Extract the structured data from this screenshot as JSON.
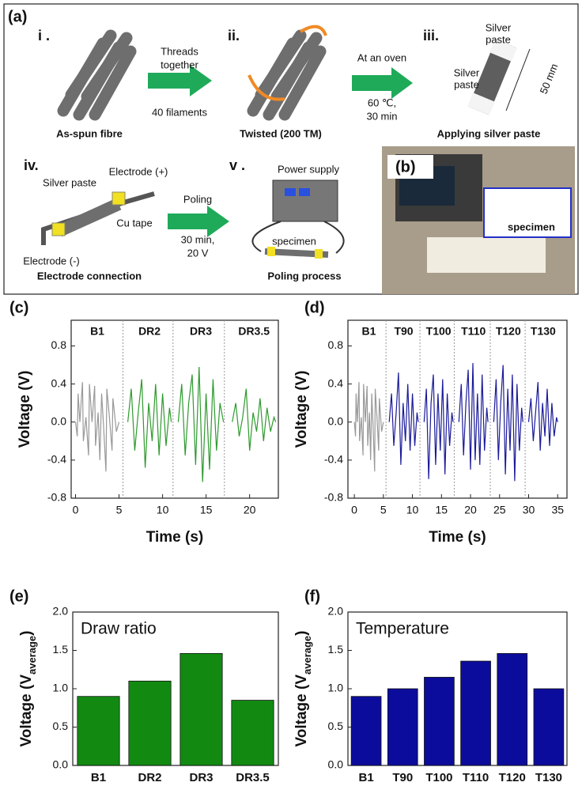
{
  "diagram": {
    "panel_label": "(a)",
    "step_i": "i .",
    "step_ii": "ii.",
    "step_iii": "iii.",
    "step_iv": "iv.",
    "step_v": "v .",
    "photo_label": "(b)",
    "arrow1_top": [
      "Threads",
      "together"
    ],
    "arrow1_bottom": "40 filaments",
    "caption_i": "As-spun fibre",
    "caption_ii": "Twisted (200 TM)",
    "arrow2_top": "At an oven",
    "arrow2_bottom": [
      "60 ℃,",
      "30 min"
    ],
    "paste_top": [
      "Silver",
      "paste"
    ],
    "paste_left": [
      "Silver",
      "paste"
    ],
    "length": "50 mm",
    "caption_iii": "Applying silver paste",
    "iv_paste": "Silver paste",
    "iv_plus": "Electrode (+)",
    "iv_tape": "Cu tape",
    "iv_minus": "Electrode (-)",
    "caption_iv": "Electrode connection",
    "arrow3_top": "Poling",
    "arrow3_bottom": [
      "30 min,",
      "20 V"
    ],
    "v_power": "Power supply",
    "v_specimen": "specimen",
    "caption_v": "Poling process",
    "photo_specimen": "specimen"
  },
  "chart_data": [
    {
      "label": "(c)",
      "type": "line",
      "ylabel": "Voltage (V)",
      "xlabel": "Time (s)",
      "xlim": [
        -0.5,
        23.3
      ],
      "xticks": [
        0,
        5,
        10,
        15,
        20
      ],
      "ylim": [
        -0.8,
        1.07
      ],
      "yticks": [
        -0.8,
        -0.4,
        {
          "value": 0,
          "label": "0.0"
        },
        0.4,
        0.8
      ],
      "dividers": [
        5.45,
        11.2,
        17.1
      ],
      "series": [
        {
          "name": "B1",
          "color": "#999999",
          "x": [
            0,
            0.2,
            0.3,
            0.5,
            0.8,
            0.9,
            1.2,
            1.5,
            1.6,
            1.9,
            2.2,
            2.3,
            2.6,
            2.8,
            3.0,
            3.2,
            3.5,
            3.6,
            3.9,
            4.2,
            4.3,
            4.7,
            5.0
          ],
          "values": [
            0,
            -0.15,
            0.3,
            0,
            0.42,
            -0.2,
            0.05,
            -0.35,
            0.4,
            0,
            0.38,
            -0.25,
            0.1,
            -0.4,
            0.3,
            0,
            -0.52,
            0.35,
            0.05,
            -0.3,
            0.25,
            -0.1,
            0
          ]
        },
        {
          "name": "DR2",
          "color": "#2e9a2e",
          "x": [
            6,
            6.4,
            6.8,
            7.2,
            7.6,
            8,
            8.4,
            8.8,
            9.2,
            9.6,
            10,
            10.4,
            10.8,
            11
          ],
          "values": [
            0,
            0.35,
            -0.3,
            0.1,
            0.45,
            -0.48,
            0.2,
            -0.2,
            0.4,
            -0.35,
            0.3,
            -0.25,
            0.15,
            0
          ]
        },
        {
          "name": "DR3",
          "color": "#2e9a2e",
          "x": [
            11.8,
            12.2,
            12.6,
            13,
            13.4,
            13.8,
            14.2,
            14.6,
            15,
            15.4,
            15.8,
            16.2,
            16.6,
            17
          ],
          "values": [
            0,
            0.4,
            -0.35,
            0.2,
            0.5,
            -0.45,
            0.58,
            -0.63,
            0.3,
            -0.5,
            0.45,
            -0.3,
            0.2,
            0
          ]
        },
        {
          "name": "DR3.5",
          "color": "#2e9a2e",
          "x": [
            18,
            18.4,
            18.8,
            19.2,
            19.6,
            20,
            20.4,
            20.8,
            21.2,
            21.6,
            22,
            22.4,
            22.8,
            23
          ],
          "values": [
            0,
            0.2,
            -0.15,
            0.05,
            0.35,
            -0.3,
            0.1,
            -0.1,
            0.25,
            -0.2,
            0.15,
            -0.1,
            0.05,
            0
          ]
        }
      ]
    },
    {
      "label": "(d)",
      "type": "line",
      "ylabel": "Voltage (V)",
      "xlabel": "Time (s)",
      "xlim": [
        -1.1,
        36.6
      ],
      "xticks": [
        0,
        5,
        10,
        15,
        20,
        25,
        30,
        35
      ],
      "ylim": [
        -0.8,
        1.07
      ],
      "yticks": [
        -0.8,
        -0.4,
        {
          "value": 0,
          "label": "0.0"
        },
        0.4,
        0.8
      ],
      "dividers": [
        5.45,
        11.3,
        17.2,
        23.4,
        29.4
      ],
      "series": [
        {
          "name": "B1",
          "color": "#999999",
          "x": [
            0,
            0.2,
            0.3,
            0.5,
            0.8,
            0.9,
            1.2,
            1.5,
            1.6,
            1.9,
            2.2,
            2.3,
            2.6,
            2.8,
            3.0,
            3.2,
            3.5,
            3.6,
            3.9,
            4.2,
            4.3,
            4.7,
            5.0
          ],
          "values": [
            0,
            -0.15,
            0.3,
            0,
            0.42,
            -0.2,
            0.05,
            -0.35,
            0.4,
            0,
            0.38,
            -0.25,
            0.1,
            -0.4,
            0.3,
            0,
            -0.52,
            0.35,
            0.05,
            -0.3,
            0.25,
            -0.1,
            0
          ]
        },
        {
          "name": "T90",
          "color": "#1a1a99",
          "x": [
            6,
            6.4,
            6.8,
            7.2,
            7.6,
            8,
            8.4,
            8.8,
            9.2,
            9.6,
            10,
            10.4,
            10.8,
            11
          ],
          "values": [
            0,
            0.3,
            -0.25,
            0.1,
            0.52,
            -0.45,
            0.2,
            -0.2,
            0.4,
            -0.3,
            0.3,
            -0.25,
            0.1,
            0
          ]
        },
        {
          "name": "T100",
          "color": "#1a1a99",
          "x": [
            12,
            12.4,
            12.8,
            13.2,
            13.6,
            14,
            14.4,
            14.8,
            15.2,
            15.6,
            16,
            16.4,
            16.8,
            17
          ],
          "values": [
            0,
            0.35,
            -0.6,
            0.2,
            0.5,
            -0.45,
            0.3,
            -0.3,
            0.45,
            -0.55,
            0.3,
            -0.25,
            0.1,
            0
          ]
        },
        {
          "name": "T110",
          "color": "#1a1a99",
          "x": [
            18,
            18.4,
            18.8,
            19.2,
            19.6,
            20,
            20.4,
            20.8,
            21.2,
            21.6,
            22,
            22.4,
            22.8,
            23
          ],
          "values": [
            0,
            0.4,
            -0.35,
            0.2,
            0.55,
            -0.5,
            0.62,
            -0.4,
            0.3,
            -0.45,
            0.5,
            -0.3,
            0.15,
            0
          ]
        },
        {
          "name": "T120",
          "color": "#1a1a99",
          "x": [
            24,
            24.4,
            24.8,
            25.2,
            25.6,
            26,
            26.4,
            26.8,
            27.2,
            27.6,
            28,
            28.4,
            28.8,
            29
          ],
          "values": [
            0,
            0.45,
            -0.4,
            0.2,
            0.6,
            -0.55,
            0.35,
            -0.3,
            0.5,
            -0.62,
            0.4,
            -0.3,
            0.15,
            0
          ]
        },
        {
          "name": "T130",
          "color": "#1a1a99",
          "x": [
            30,
            30.4,
            30.8,
            31.2,
            31.6,
            32,
            32.4,
            32.8,
            33.2,
            33.6,
            34,
            34.4,
            34.8,
            35
          ],
          "values": [
            0,
            0.25,
            -0.2,
            0.1,
            0.42,
            -0.3,
            0.2,
            -0.15,
            0.35,
            -0.25,
            0.2,
            -0.15,
            0.05,
            0
          ]
        }
      ]
    },
    {
      "label": "(e)",
      "type": "bar",
      "annotation": "Draw ratio",
      "ylabel": "Voltage (V",
      "ylabel_sub": "average",
      "ylabel_end": ")",
      "categories": [
        "B1",
        "DR2",
        "DR3",
        "DR3.5"
      ],
      "values": [
        0.9,
        1.1,
        1.46,
        0.85
      ],
      "color": "#128a12",
      "ylim": [
        0,
        2
      ],
      "yticks": [
        {
          "value": 0,
          "label": "0.0"
        },
        0.5,
        {
          "value": 1,
          "label": "1.0"
        },
        1.5,
        {
          "value": 2,
          "label": "2.0"
        }
      ]
    },
    {
      "label": "(f)",
      "type": "bar",
      "annotation": "Temperature",
      "ylabel": "Voltage (V",
      "ylabel_sub": "average",
      "ylabel_end": ")",
      "categories": [
        "B1",
        "T90",
        "T100",
        "T110",
        "T120",
        "T130"
      ],
      "values": [
        0.9,
        1.0,
        1.15,
        1.36,
        1.46,
        1.0
      ],
      "color": "#0c0c9c",
      "ylim": [
        0,
        2
      ],
      "yticks": [
        {
          "value": 0,
          "label": "0.0"
        },
        0.5,
        {
          "value": 1,
          "label": "1.0"
        },
        1.5,
        {
          "value": 2,
          "label": "2.0"
        }
      ]
    }
  ]
}
